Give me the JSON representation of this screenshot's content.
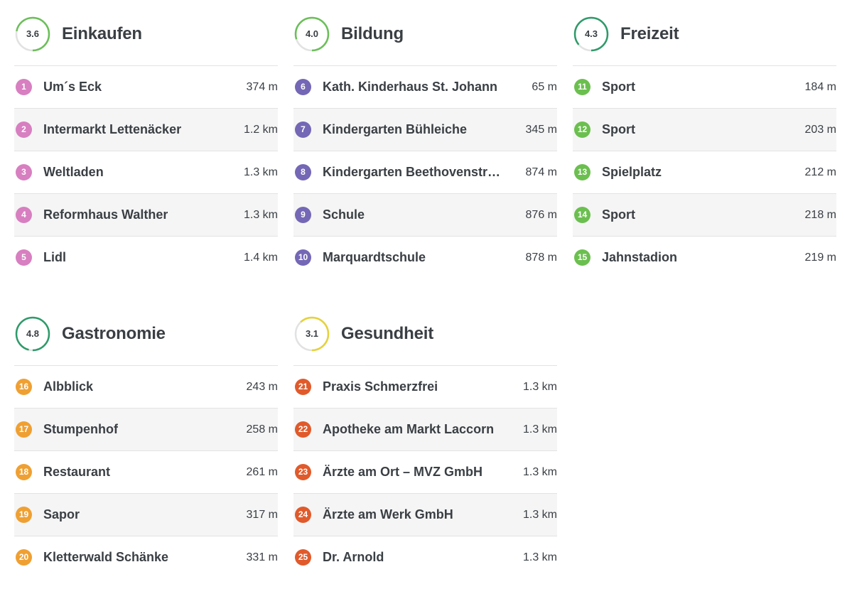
{
  "categories": [
    {
      "title": "Einkaufen",
      "score": "3.6",
      "score_fraction": 0.72,
      "ring_color": "#6bbf59",
      "poi_color": "#d77fc0",
      "items": [
        {
          "num": "1",
          "name": "Um´s Eck",
          "dist": "374 m"
        },
        {
          "num": "2",
          "name": "Intermarkt Lettenäcker",
          "dist": "1.2 km"
        },
        {
          "num": "3",
          "name": "Weltladen",
          "dist": "1.3 km"
        },
        {
          "num": "4",
          "name": "Reformhaus Walther",
          "dist": "1.3 km"
        },
        {
          "num": "5",
          "name": "Lidl",
          "dist": "1.4 km"
        }
      ]
    },
    {
      "title": "Bildung",
      "score": "4.0",
      "score_fraction": 0.8,
      "ring_color": "#6bbf59",
      "poi_color": "#7467b5",
      "items": [
        {
          "num": "6",
          "name": "Kath. Kinderhaus St. Johann",
          "dist": "65 m"
        },
        {
          "num": "7",
          "name": "Kindergarten Bühleiche",
          "dist": "345 m"
        },
        {
          "num": "8",
          "name": "Kindergarten Beethovenstr…",
          "dist": "874 m"
        },
        {
          "num": "9",
          "name": "Schule",
          "dist": "876 m"
        },
        {
          "num": "10",
          "name": "Marquardtschule",
          "dist": "878 m"
        }
      ]
    },
    {
      "title": "Freizeit",
      "score": "4.3",
      "score_fraction": 0.86,
      "ring_color": "#2f9a6a",
      "poi_color": "#6bbf4f",
      "items": [
        {
          "num": "11",
          "name": "Sport",
          "dist": "184 m"
        },
        {
          "num": "12",
          "name": "Sport",
          "dist": "203 m"
        },
        {
          "num": "13",
          "name": "Spielplatz",
          "dist": "212 m"
        },
        {
          "num": "14",
          "name": "Sport",
          "dist": "218 m"
        },
        {
          "num": "15",
          "name": "Jahnstadion",
          "dist": "219 m"
        }
      ]
    },
    {
      "title": "Gastronomie",
      "score": "4.8",
      "score_fraction": 0.96,
      "ring_color": "#2f9a6a",
      "poi_color": "#efa032",
      "items": [
        {
          "num": "16",
          "name": "Albblick",
          "dist": "243 m"
        },
        {
          "num": "17",
          "name": "Stumpenhof",
          "dist": "258 m"
        },
        {
          "num": "18",
          "name": "Restaurant",
          "dist": "261 m"
        },
        {
          "num": "19",
          "name": "Sapor",
          "dist": "317 m"
        },
        {
          "num": "20",
          "name": "Kletterwald Schänke",
          "dist": "331 m"
        }
      ]
    },
    {
      "title": "Gesundheit",
      "score": "3.1",
      "score_fraction": 0.62,
      "ring_color": "#e6d23a",
      "poi_color": "#e05a2b",
      "items": [
        {
          "num": "21",
          "name": "Praxis Schmerzfrei",
          "dist": "1.3 km"
        },
        {
          "num": "22",
          "name": "Apotheke am Markt Laccorn",
          "dist": "1.3 km"
        },
        {
          "num": "23",
          "name": "Ärzte am Ort – MVZ GmbH",
          "dist": "1.3 km"
        },
        {
          "num": "24",
          "name": "Ärzte am Werk GmbH",
          "dist": "1.3 km"
        },
        {
          "num": "25",
          "name": "Dr. Arnold",
          "dist": "1.3 km"
        }
      ]
    }
  ]
}
